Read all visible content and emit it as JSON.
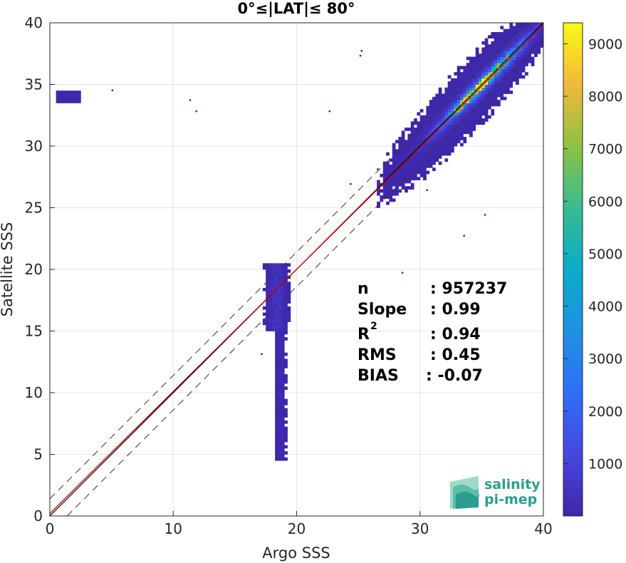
{
  "chart_data": {
    "type": "heatmap",
    "title": "0°≤|LAT|≤ 80°",
    "xlabel": "Argo SSS",
    "ylabel": "Satellite SSS",
    "xlim": [
      0,
      40
    ],
    "ylim": [
      0,
      40
    ],
    "xticks": [
      "0",
      "10",
      "20",
      "30",
      "40"
    ],
    "yticks": [
      "0",
      "5",
      "10",
      "15",
      "20",
      "25",
      "30",
      "35",
      "40"
    ],
    "grid": true,
    "reference_line": {
      "type": "1:1",
      "color": "#000000"
    },
    "fit_line": {
      "slope": 0.99,
      "color": "#cc0000"
    },
    "dashed_offsets": [
      1.4,
      -1.4
    ],
    "colorbar": {
      "min": 0,
      "max": 9400,
      "ticks": [
        "1000",
        "2000",
        "3000",
        "4000",
        "5000",
        "6000",
        "7000",
        "8000",
        "9000"
      ]
    },
    "density_clusters": [
      {
        "x": 34.8,
        "y": 35.0,
        "peak": 9400
      },
      {
        "x": 36.5,
        "y": 36.5,
        "peak": 3000
      },
      {
        "x": 33.5,
        "y": 33.5,
        "peak": 2200
      },
      {
        "x": 31.5,
        "y": 31.5,
        "peak": 800
      },
      {
        "x": 18.3,
        "y": 18.0,
        "peak": 600
      },
      {
        "x": 18.6,
        "y": 12.0,
        "peak": 200
      },
      {
        "x": 1.0,
        "y": 34.0,
        "peak": 100
      }
    ],
    "stats": {
      "n_label": "n",
      "n_value": ": 957237",
      "slope_label": "Slope",
      "slope_value": ": 0.99",
      "r2_label": "R",
      "r2_sup": "2",
      "r2_value": ": 0.94",
      "rms_label": "RMS",
      "rms_value": ": 0.45",
      "bias_label": "BIAS",
      "bias_value": ": -0.07"
    }
  },
  "logo": {
    "line1": "salinity",
    "line2": "pi-mep",
    "color": "#2a9d8f"
  }
}
